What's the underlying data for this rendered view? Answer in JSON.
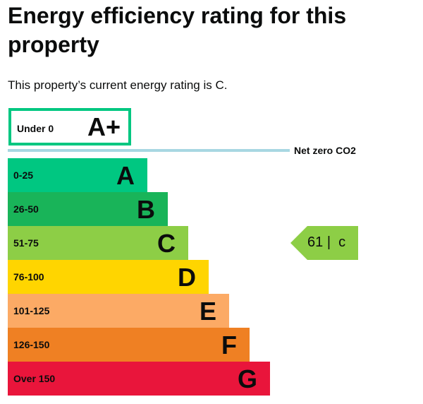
{
  "title": "Energy efficiency rating for this property",
  "subtitle": "This property’s current energy rating is C.",
  "aplus": {
    "range": "Under 0",
    "letter": "A+",
    "color": "#00c781"
  },
  "net_zero_label": "Net zero CO2",
  "bands": [
    {
      "range": "0-25",
      "letter": "A",
      "color": "#00c781"
    },
    {
      "range": "26-50",
      "letter": "B",
      "color": "#19b459"
    },
    {
      "range": "51-75",
      "letter": "C",
      "color": "#8dce46"
    },
    {
      "range": "76-100",
      "letter": "D",
      "color": "#ffd500"
    },
    {
      "range": "101-125",
      "letter": "E",
      "color": "#fcaa65"
    },
    {
      "range": "126-150",
      "letter": "F",
      "color": "#ef8023"
    },
    {
      "range": "Over 150",
      "letter": "G",
      "color": "#e9153b"
    }
  ],
  "current": {
    "score": "61",
    "separator": "|",
    "letter": "c",
    "color": "#8dce46",
    "band": "C"
  }
}
